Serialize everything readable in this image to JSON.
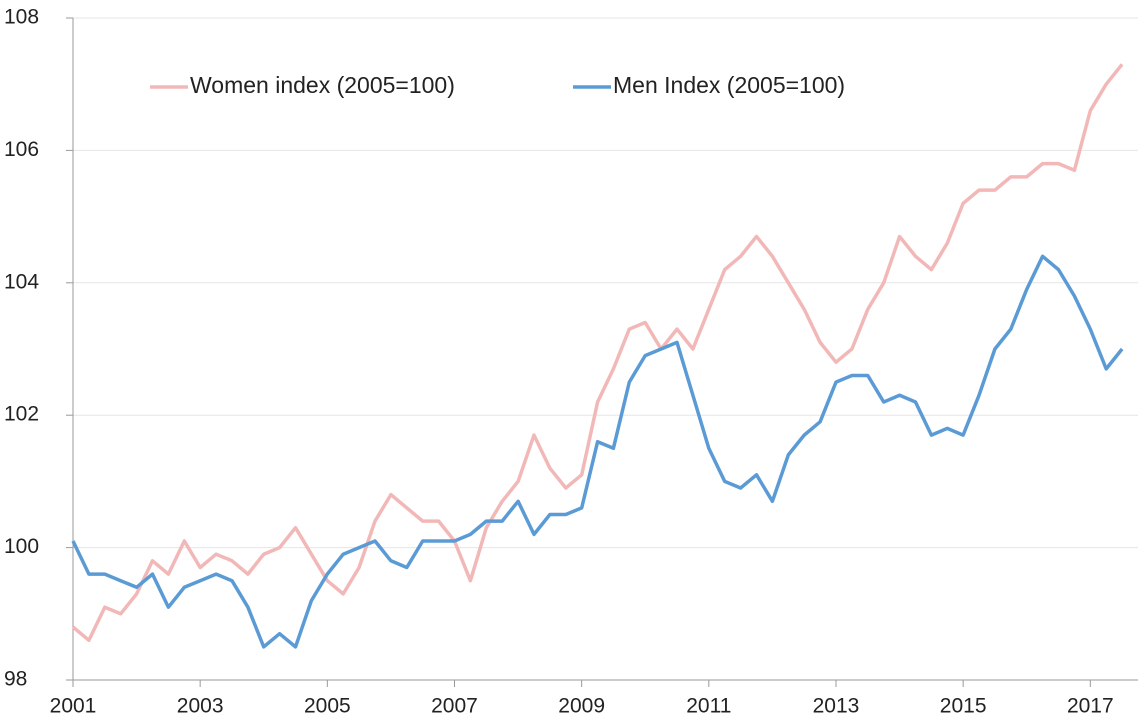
{
  "chart_data": {
    "type": "line",
    "x": [
      2001,
      2001.25,
      2001.5,
      2001.75,
      2002,
      2002.25,
      2002.5,
      2002.75,
      2003,
      2003.25,
      2003.5,
      2003.75,
      2004,
      2004.25,
      2004.5,
      2004.75,
      2005,
      2005.25,
      2005.5,
      2005.75,
      2006,
      2006.25,
      2006.5,
      2006.75,
      2007,
      2007.25,
      2007.5,
      2007.75,
      2008,
      2008.25,
      2008.5,
      2008.75,
      2009,
      2009.25,
      2009.5,
      2009.75,
      2010,
      2010.25,
      2010.5,
      2010.75,
      2011,
      2011.25,
      2011.5,
      2011.75,
      2012,
      2012.25,
      2012.5,
      2012.75,
      2013,
      2013.25,
      2013.5,
      2013.75,
      2014,
      2014.25,
      2014.5,
      2014.75,
      2015,
      2015.25,
      2015.5,
      2015.75,
      2016,
      2016.25,
      2016.5,
      2016.75,
      2017,
      2017.25,
      2017.5
    ],
    "series": [
      {
        "name": "Women index (2005=100)",
        "color": "#f2b8b8",
        "values": [
          98.8,
          98.6,
          99.1,
          99.0,
          99.3,
          99.8,
          99.6,
          100.1,
          99.7,
          99.9,
          99.8,
          99.6,
          99.9,
          100.0,
          100.3,
          99.9,
          99.5,
          99.3,
          99.7,
          100.4,
          100.8,
          100.6,
          100.4,
          100.4,
          100.1,
          99.5,
          100.3,
          100.7,
          101.0,
          101.7,
          101.2,
          100.9,
          101.1,
          102.2,
          102.7,
          103.3,
          103.4,
          103.0,
          103.3,
          103.0,
          103.6,
          104.2,
          104.4,
          104.7,
          104.4,
          104.0,
          103.6,
          103.1,
          102.8,
          103.0,
          103.6,
          104.0,
          104.7,
          104.4,
          104.2,
          104.6,
          105.2,
          105.4,
          105.4,
          105.6,
          105.6,
          105.8,
          105.8,
          105.7,
          106.6,
          107.0,
          107.3
        ]
      },
      {
        "name": "Men Index (2005=100)",
        "color": "#5b9bd5",
        "values": [
          100.1,
          99.6,
          99.6,
          99.5,
          99.4,
          99.6,
          99.1,
          99.4,
          99.5,
          99.6,
          99.5,
          99.1,
          98.5,
          98.7,
          98.5,
          99.2,
          99.6,
          99.9,
          100.0,
          100.1,
          99.8,
          99.7,
          100.1,
          100.1,
          100.1,
          100.2,
          100.4,
          100.4,
          100.7,
          100.2,
          100.5,
          100.5,
          100.6,
          101.6,
          101.5,
          102.5,
          102.9,
          103.0,
          103.1,
          102.3,
          101.5,
          101.0,
          100.9,
          101.1,
          100.7,
          101.4,
          101.7,
          101.9,
          102.5,
          102.6,
          102.6,
          102.2,
          102.3,
          102.2,
          101.7,
          101.8,
          101.7,
          102.3,
          103.0,
          103.3,
          103.9,
          104.4,
          104.2,
          103.8,
          103.3,
          102.7,
          103.0
        ]
      }
    ],
    "xlim": [
      2001,
      2017.75
    ],
    "xticks": [
      2001,
      2003,
      2005,
      2007,
      2009,
      2011,
      2013,
      2015,
      2017
    ],
    "ylim": [
      98,
      108
    ],
    "yticks": [
      98,
      100,
      102,
      104,
      106,
      108
    ],
    "grid": true
  }
}
